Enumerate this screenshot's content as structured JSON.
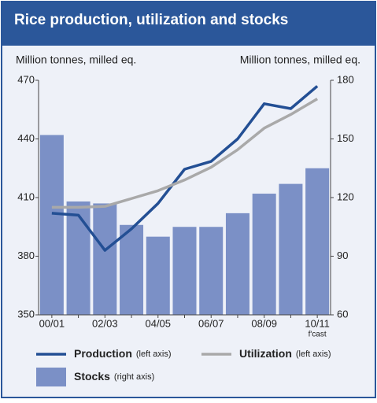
{
  "chart_data": {
    "type": "bar-line",
    "title": "Rice production, utilization and stocks",
    "y_label": "Million tonnes, milled eq.",
    "y2_label": "Million tonnes, milled eq.",
    "categories": [
      "00/01",
      null,
      "02/03",
      null,
      "04/05",
      null,
      "06/07",
      null,
      "08/09",
      null,
      "10/11"
    ],
    "category_note": "f'cast",
    "ylim": [
      350,
      470
    ],
    "yticks": [
      350,
      380,
      410,
      440,
      470
    ],
    "y2lim": [
      60,
      180
    ],
    "y2ticks": [
      60,
      90,
      120,
      150,
      180
    ],
    "series": [
      {
        "name": "Stocks",
        "note": "(right axis)",
        "kind": "bar",
        "axis": "y2",
        "color": "#7b90c6",
        "values": [
          152,
          118,
          117,
          106,
          100,
          105,
          105,
          112,
          122,
          127,
          135
        ]
      },
      {
        "name": "Production",
        "note": "(left axis)",
        "kind": "line",
        "axis": "y",
        "color": "#234f94",
        "values": [
          402,
          401,
          383,
          394,
          407,
          424.5,
          428.5,
          440,
          458,
          455.5,
          467
        ]
      },
      {
        "name": "Utilization",
        "note": "(left axis)",
        "kind": "line",
        "axis": "y",
        "color": "#a9a9a9",
        "values": [
          405,
          405,
          405.5,
          409.5,
          413.5,
          419,
          425.5,
          434.5,
          445.5,
          452.5,
          460.5
        ]
      }
    ]
  }
}
